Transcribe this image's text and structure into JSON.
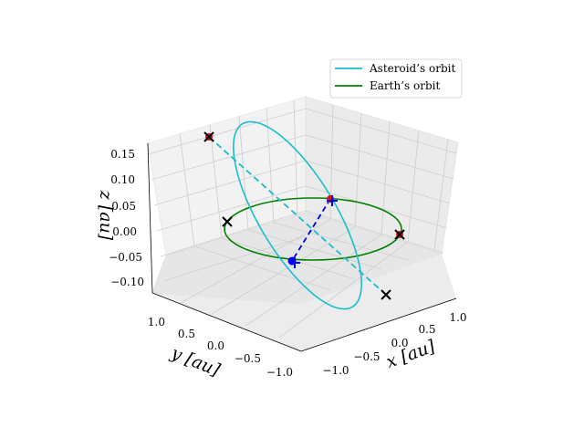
{
  "chart_data": {
    "type": "line",
    "projection": "3d",
    "grid": true,
    "legend_position": "top-right",
    "xlabel": "x [au]",
    "ylabel": "y [au]",
    "zlabel": "z [au]",
    "x_ticks": [
      "−1.0",
      "−0.5",
      "0.0",
      "0.5",
      "1.0"
    ],
    "y_ticks": [
      "1.0",
      "0.5",
      "0.0",
      "−0.5",
      "−1.0"
    ],
    "z_ticks": [
      "0.15",
      "0.10",
      "0.05",
      "0.00",
      "−0.05",
      "−0.10"
    ],
    "xlim": [
      -1.2,
      1.2
    ],
    "ylim": [
      -1.2,
      1.2
    ],
    "zlim": [
      -0.12,
      0.17
    ],
    "series": [
      {
        "name": "Asteroid’s orbit",
        "color": "#17becf",
        "style": "solid",
        "description": "inclined ellipse",
        "node_line": {
          "style": "dashed",
          "from": [
            -0.82,
            1.06,
            0.165
          ],
          "to": [
            0.83,
            -1.06,
            -0.125
          ]
        }
      },
      {
        "name": "Earth’s orbit",
        "color": "#008000",
        "style": "solid",
        "description": "circle in z = 0 plane",
        "radius": 1.0
      }
    ],
    "markers": [
      {
        "type": "x",
        "color": "#000000",
        "x": -0.82,
        "y": 1.06,
        "z": 0.165
      },
      {
        "type": "x",
        "color": "#000000",
        "x": 0.83,
        "y": -1.06,
        "z": -0.125
      },
      {
        "type": "x",
        "color": "#000000",
        "x": -0.92,
        "y": 0.39,
        "z": 0.0
      },
      {
        "type": "x",
        "color": "#000000",
        "x": 0.92,
        "y": -0.39,
        "z": 0.0
      },
      {
        "type": "dot",
        "color": "#e01010",
        "x": 0.14,
        "y": 0.99,
        "z": 0.0
      },
      {
        "type": "dot",
        "color": "#e01010",
        "x": 0.92,
        "y": -0.39,
        "z": 0.0
      },
      {
        "type": "dot",
        "color": "#e01010",
        "x": -0.82,
        "y": 1.06,
        "z": 0.165
      }
    ],
    "connector": {
      "color": "#0000ee",
      "style": "dashed",
      "from": [
        0.14,
        0.99,
        0.0
      ],
      "to": [
        -0.2,
        -0.4,
        0.0
      ]
    },
    "blue_points": [
      {
        "type": "dot",
        "color": "#0000ee",
        "x": 0.14,
        "y": 0.99,
        "z": 0.0
      },
      {
        "type": "dot",
        "color": "#0000ee",
        "x": -0.2,
        "y": -0.4,
        "z": 0.0
      },
      {
        "type": "plus",
        "color": "#0000ee",
        "x": 0.14,
        "y": 0.99,
        "z": 0.0
      },
      {
        "type": "plus",
        "color": "#0000ee",
        "x": -0.2,
        "y": -0.4,
        "z": 0.0
      }
    ]
  }
}
